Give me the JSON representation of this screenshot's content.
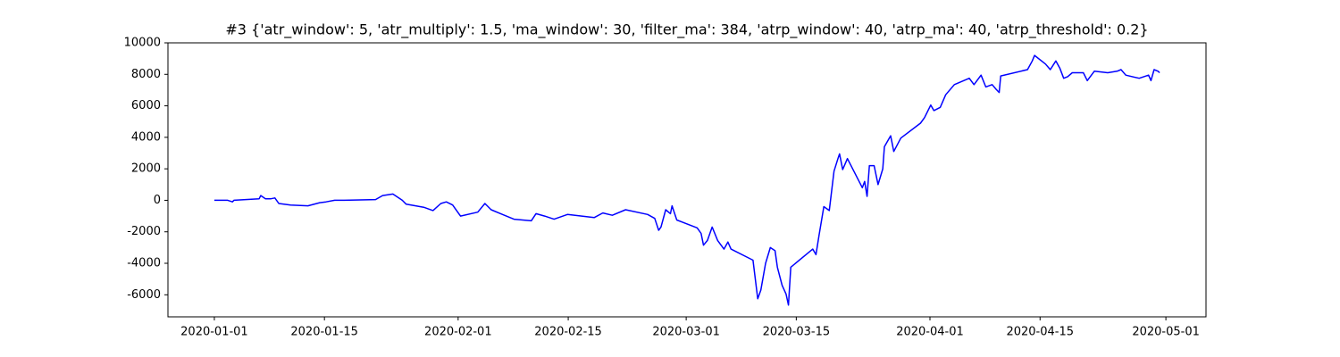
{
  "chart_data": {
    "type": "line",
    "title": "#3 {'atr_window': 5, 'atr_multiply': 1.5, 'ma_window': 30, 'filter_ma': 384, 'atrp_window': 40, 'atrp_ma': 40, 'atrp_threshold': 0.2}",
    "x": [
      0,
      1.7,
      2.3,
      2.5,
      5.7,
      5.9,
      6.5,
      7.2,
      7.7,
      8.2,
      9.7,
      11.9,
      13.4,
      14.2,
      15.3,
      16.5,
      20.5,
      21.4,
      22.7,
      23.9,
      24.4,
      26.7,
      27.8,
      28.8,
      29.5,
      30.3,
      31.3,
      33.5,
      34.4,
      35.2,
      36.4,
      38.1,
      40.3,
      40.9,
      42,
      43.2,
      44.9,
      48.3,
      49.4,
      50.6,
      52.3,
      55.1,
      56,
      56.5,
      56.8,
      57.4,
      58,
      58.2,
      58.8,
      61.4,
      61.9,
      62.2,
      62.7,
      63.3,
      64,
      64.8,
      65.3,
      65.7,
      68.5,
      69.1,
      69.5,
      70.1,
      70.7,
      71.3,
      71.6,
      72.2,
      72.7,
      73,
      73.3,
      75.6,
      76.1,
      76.5,
      76.9,
      77.5,
      78.2,
      78.8,
      79.3,
      79.5,
      79.9,
      80.5,
      82.4,
      82.7,
      83,
      83.3,
      83.9,
      84.4,
      85,
      85.2,
      86,
      86.4,
      87.3,
      89.8,
      90.3,
      91.1,
      91.5,
      92.3,
      93,
      94.1,
      96,
      96.6,
      97.5,
      98.1,
      98.9,
      99.4,
      99.8,
      100,
      103.4,
      104,
      104.3,
      105.7,
      106.3,
      107,
      107.5,
      108,
      108.5,
      109.1,
      110.5,
      111,
      111.9,
      113.6,
      114.8,
      115.3,
      115.9,
      117.6,
      118.8,
      119.1,
      119.5,
      120,
      120.2
    ],
    "series": [
      {
        "color": "#0000ff",
        "values": [
          0,
          0,
          -100,
          0,
          100,
          300,
          100,
          100,
          150,
          -200,
          -300,
          -350,
          -150,
          -100,
          0,
          0,
          50,
          300,
          400,
          0,
          -250,
          -450,
          -650,
          -200,
          -100,
          -300,
          -1000,
          -750,
          -200,
          -600,
          -850,
          -1200,
          -1300,
          -850,
          -1000,
          -1200,
          -900,
          -1100,
          -800,
          -950,
          -600,
          -900,
          -1150,
          -1900,
          -1700,
          -600,
          -850,
          -350,
          -1250,
          -1750,
          -2100,
          -2850,
          -2550,
          -1700,
          -2550,
          -3100,
          -2650,
          -3100,
          -3800,
          -6250,
          -5700,
          -4000,
          -3000,
          -3200,
          -4250,
          -5400,
          -5950,
          -6650,
          -4250,
          -3300,
          -3100,
          -3450,
          -2200,
          -400,
          -650,
          1850,
          2650,
          2950,
          1950,
          2650,
          800,
          1200,
          250,
          2200,
          2200,
          1000,
          2000,
          3400,
          4100,
          3100,
          3950,
          4900,
          5250,
          6050,
          5700,
          5900,
          6700,
          7350,
          7750,
          7350,
          7950,
          7200,
          7350,
          7050,
          6850,
          7900,
          8300,
          8850,
          9200,
          8650,
          8300,
          8850,
          8400,
          7750,
          7850,
          8100,
          8100,
          7600,
          8200,
          8100,
          8200,
          8300,
          7950,
          7750,
          7950,
          7600,
          8300,
          8200,
          8100
        ]
      }
    ],
    "xlim": [
      -5.9,
      126.1
    ],
    "xticks": [
      {
        "value": 0,
        "label": "2020-01-01"
      },
      {
        "value": 14,
        "label": "2020-01-15"
      },
      {
        "value": 31,
        "label": "2020-02-01"
      },
      {
        "value": 45,
        "label": "2020-02-15"
      },
      {
        "value": 60,
        "label": "2020-03-01"
      },
      {
        "value": 74,
        "label": "2020-03-15"
      },
      {
        "value": 91,
        "label": "2020-04-01"
      },
      {
        "value": 105,
        "label": "2020-04-15"
      },
      {
        "value": 121,
        "label": "2020-05-01"
      }
    ],
    "ylim": [
      -7400,
      10000
    ],
    "yticks": [
      -6000,
      -4000,
      -2000,
      0,
      2000,
      4000,
      6000,
      8000,
      10000
    ]
  }
}
